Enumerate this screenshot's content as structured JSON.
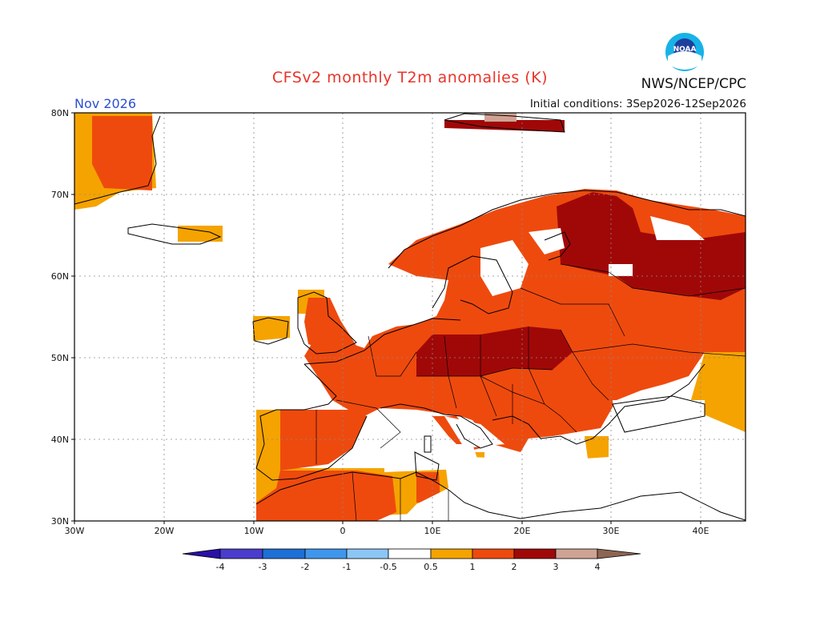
{
  "title": "CFSv2 monthly T2m anomalies (K)",
  "source": "NWS/NCEP/CPC",
  "logo_text": "NOAA",
  "month": "Nov 2026",
  "initial_conditions": "Initial conditions: 3Sep2026-12Sep2026",
  "lat_ticks": [
    "80N",
    "70N",
    "60N",
    "50N",
    "40N",
    "30N"
  ],
  "lon_ticks": [
    "30W",
    "20W",
    "10W",
    "0",
    "10E",
    "20E",
    "30E",
    "40E"
  ],
  "colorbar": {
    "labels": [
      "-4",
      "-3",
      "-2",
      "-1",
      "-0.5",
      "0.5",
      "1",
      "2",
      "3",
      "4"
    ],
    "colors": {
      "below_-4": "#2a10a8",
      "-4_-3": "#4a3ccc",
      "-3_-2": "#1e6fd6",
      "-2_-1": "#3f96ec",
      "-1_-0.5": "#8cc6f5",
      "-0.5_0.5": "#ffffff",
      "0.5_1": "#f5a300",
      "1_2": "#ee4a0e",
      "2_3": "#a00808",
      "3_4": "#cfa394",
      "above_4": "#8c6553"
    }
  },
  "colors": {
    "coast": "#000000",
    "grid": "#8a8a8a",
    "title": "#e8352a",
    "month": "#2a4fd0"
  }
}
